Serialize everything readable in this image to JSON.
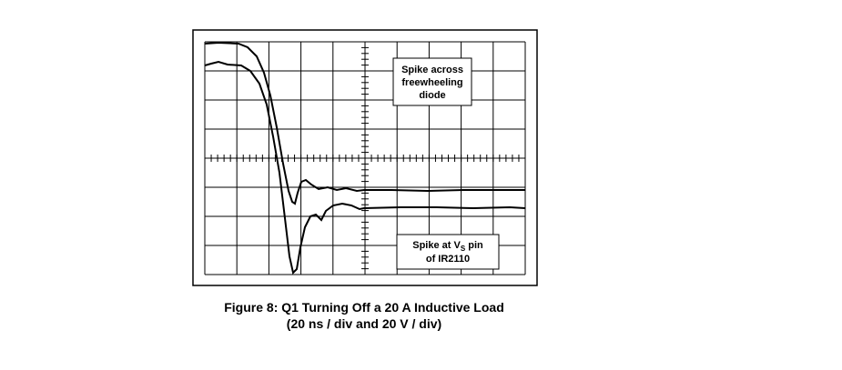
{
  "figure": {
    "annotations": [
      {
        "lines": [
          "Spike across",
          "freewheeling",
          "diode"
        ]
      },
      {
        "lines": [
          [
            "Spike at V",
            "S",
            " pin"
          ],
          "of IR2110"
        ]
      }
    ],
    "caption": [
      "Figure 8: Q1 Turning Off a 20 A Inductive Load",
      "(20 ns / div and 20 V / div)"
    ]
  }
}
